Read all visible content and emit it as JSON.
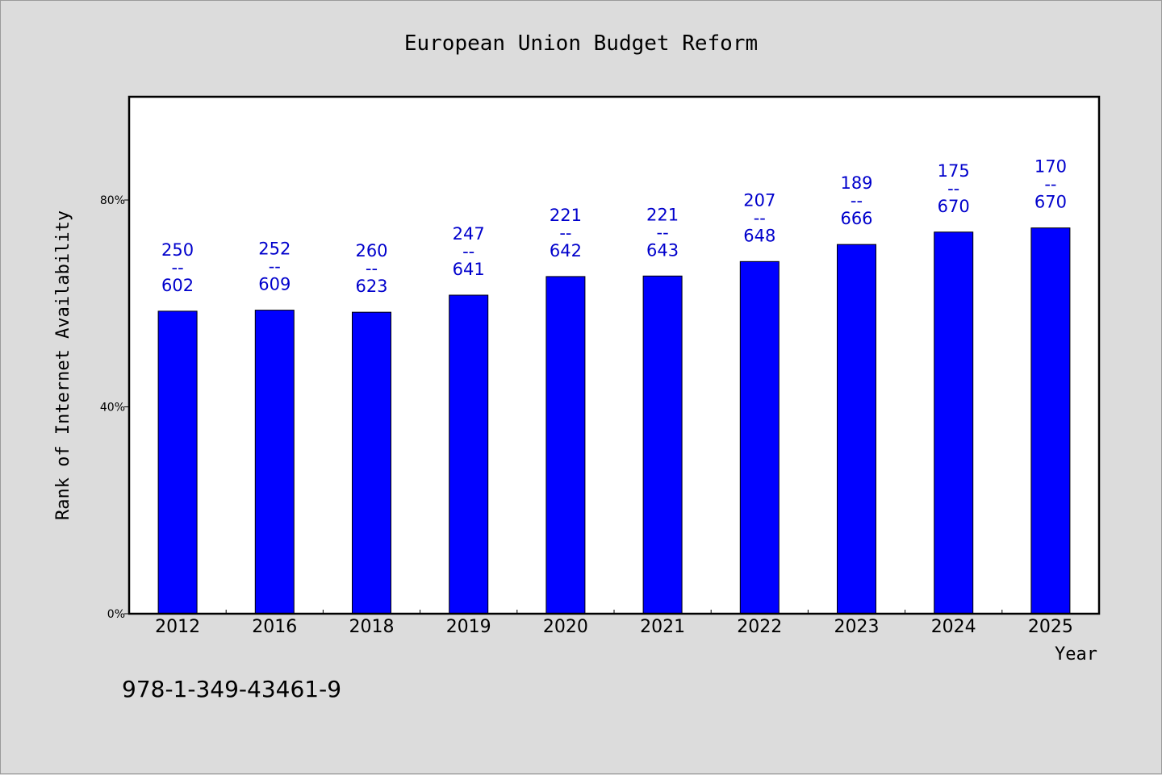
{
  "chart_data": {
    "type": "bar",
    "title": "European Union Budget Reform",
    "xlabel": "Year",
    "ylabel": "Rank of Internet Availability",
    "categories": [
      "2012",
      "2016",
      "2018",
      "2019",
      "2020",
      "2021",
      "2022",
      "2023",
      "2024",
      "2025"
    ],
    "values": [
      58.5,
      58.7,
      58.3,
      61.6,
      65.2,
      65.3,
      68.1,
      71.4,
      73.8,
      74.6
    ],
    "value_unit": "%",
    "data_labels": [
      {
        "top": "250",
        "sep": "--",
        "bottom": "602"
      },
      {
        "top": "252",
        "sep": "--",
        "bottom": "609"
      },
      {
        "top": "260",
        "sep": "--",
        "bottom": "623"
      },
      {
        "top": "247",
        "sep": "--",
        "bottom": "641"
      },
      {
        "top": "221",
        "sep": "--",
        "bottom": "642"
      },
      {
        "top": "221",
        "sep": "--",
        "bottom": "643"
      },
      {
        "top": "207",
        "sep": "--",
        "bottom": "648"
      },
      {
        "top": "189",
        "sep": "--",
        "bottom": "666"
      },
      {
        "top": "175",
        "sep": "--",
        "bottom": "670"
      },
      {
        "top": "170",
        "sep": "--",
        "bottom": "670"
      }
    ],
    "ylim": [
      0,
      100
    ],
    "y_ticks": [
      {
        "value": 0,
        "label": "0%"
      },
      {
        "value": 40,
        "label": "40%"
      },
      {
        "value": 80,
        "label": "80%"
      }
    ],
    "grid": false,
    "legend": "none",
    "bar_color": "#0000ff",
    "label_color": "#0000cc",
    "plot_background": "#ffffff",
    "page_background": "#dcdcdc"
  },
  "footer": {
    "identifier": "978-1-349-43461-9"
  }
}
